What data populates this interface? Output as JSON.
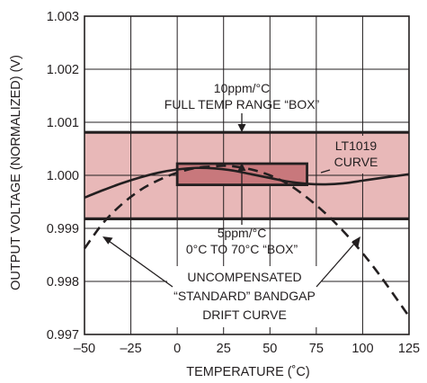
{
  "chart_data": {
    "type": "line",
    "xlabel": "TEMPERATURE (˚C)",
    "ylabel": "OUTPUT VOLTAGE (NORMALIZED) (V)",
    "xlim": [
      -50,
      125
    ],
    "ylim": [
      0.997,
      1.003
    ],
    "x_ticks": [
      "–50",
      "–25",
      "0",
      "25",
      "50",
      "75",
      "100",
      "125"
    ],
    "y_ticks": [
      "1.003",
      "1.002",
      "1.001",
      "1.000",
      "0.999",
      "0.998",
      "0.997"
    ],
    "grid": true,
    "boxes": [
      {
        "name": "full temp range box",
        "x": [
          -50,
          125
        ],
        "y": [
          0.99918,
          1.00081
        ],
        "color": "#e8b8b8"
      },
      {
        "name": "0 to 70 box",
        "x": [
          0,
          70
        ],
        "y": [
          0.99982,
          1.00022
        ],
        "color": "#c8787c"
      }
    ],
    "series": [
      {
        "style": "solid",
        "x": [
          -50,
          -40,
          -30,
          -20,
          -10,
          0,
          10,
          20,
          30,
          40,
          50,
          60,
          70,
          80,
          90,
          100,
          110,
          125
        ],
        "y": [
          0.99958,
          0.99972,
          0.99985,
          0.99996,
          1.00005,
          1.00011,
          1.00014,
          1.00013,
          1.00009,
          1.00002,
          0.99995,
          0.99988,
          0.99984,
          0.99983,
          0.99985,
          0.9999,
          0.99995,
          1.00002
        ]
      },
      {
        "style": "dashed",
        "x": [
          -50,
          -40,
          -30,
          -20,
          -10,
          0,
          10,
          20,
          25,
          30,
          40,
          50,
          60,
          70,
          80,
          90,
          100,
          110,
          125
        ],
        "y": [
          0.99862,
          0.9991,
          0.99945,
          0.99972,
          0.99991,
          1.00005,
          1.00014,
          1.00017,
          1.00018,
          1.00017,
          1.00011,
          1.0,
          0.99983,
          0.99958,
          0.99928,
          0.99893,
          0.99853,
          0.99808,
          0.99734
        ]
      }
    ],
    "annotations": {
      "box10": [
        "10ppm/°C",
        "FULL TEMP RANGE “BOX”"
      ],
      "lt1019": [
        "LT1019",
        "CURVE"
      ],
      "box5": [
        "5ppm/°C",
        "0°C TO 70°C “BOX”"
      ],
      "uncomp": [
        "UNCOMPENSATED",
        "“STANDARD” BANDGAP",
        "DRIFT CURVE"
      ]
    }
  }
}
